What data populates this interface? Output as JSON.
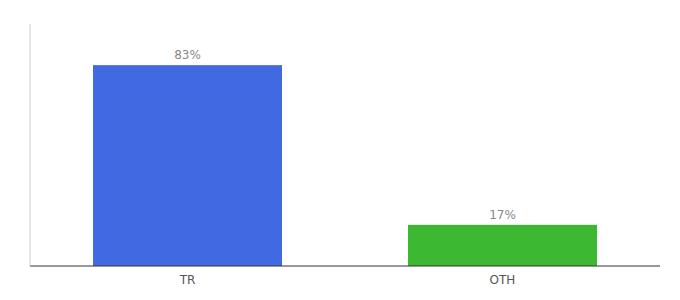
{
  "chart_data": {
    "type": "bar",
    "categories": [
      "TR",
      "OTH"
    ],
    "values": [
      83,
      17
    ],
    "value_labels": [
      "83%",
      "17%"
    ],
    "colors": [
      "#4169e1",
      "#3cb832"
    ],
    "ylim": [
      0,
      100
    ],
    "yticks": [],
    "data_labels": true,
    "tick_labels": "x"
  }
}
